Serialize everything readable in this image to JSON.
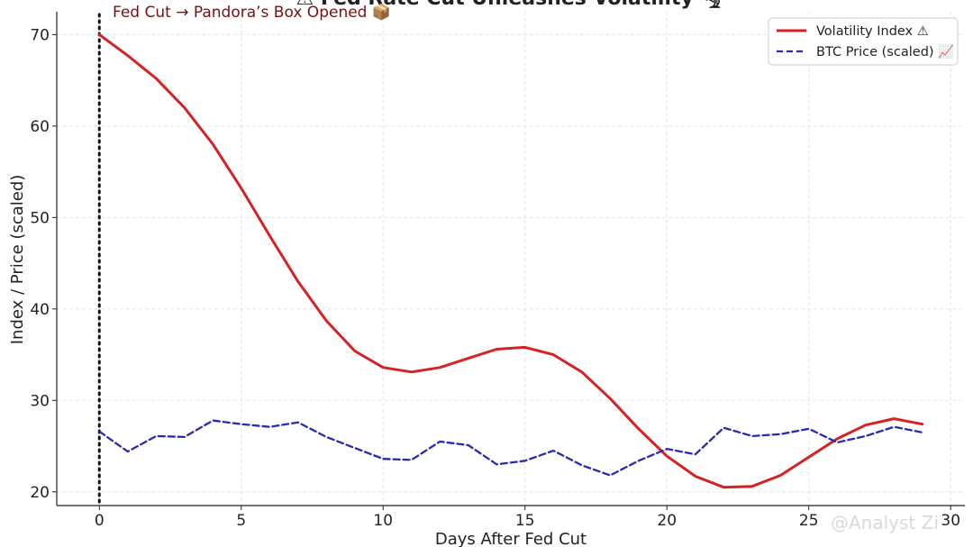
{
  "chart_data": {
    "type": "line",
    "title": "⚠ Fed Rate Cut Unleashes Volatility 🌪",
    "xlabel": "Days After Fed Cut",
    "ylabel": "Index / Price (scaled)",
    "xlim": [
      -1.5,
      30.5
    ],
    "ylim": [
      18.5,
      72.5
    ],
    "xticks": [
      0,
      5,
      10,
      15,
      20,
      25,
      30
    ],
    "yticks": [
      20,
      30,
      40,
      50,
      60,
      70
    ],
    "grid": true,
    "legend_position": "top-right",
    "x": [
      0,
      1,
      2,
      3,
      4,
      5,
      6,
      7,
      8,
      9,
      10,
      11,
      12,
      13,
      14,
      15,
      16,
      17,
      18,
      19,
      20,
      21,
      22,
      23,
      24,
      25,
      26,
      27,
      28,
      29
    ],
    "series": [
      {
        "name": "Volatility Index ⚠",
        "color": "#d62222",
        "style": "solid",
        "values": [
          70.0,
          67.7,
          65.2,
          62.0,
          58.0,
          53.2,
          48.0,
          43.0,
          38.7,
          35.4,
          33.6,
          33.1,
          33.6,
          34.6,
          35.6,
          35.8,
          35.0,
          33.1,
          30.2,
          26.9,
          23.9,
          21.7,
          20.5,
          20.6,
          21.8,
          23.8,
          25.8,
          27.3,
          28.0,
          27.4
        ]
      },
      {
        "name": "BTC Price (scaled) 📈",
        "color": "#2a2ab0",
        "style": "dashed",
        "values": [
          26.6,
          24.4,
          26.1,
          26.0,
          27.8,
          27.4,
          27.1,
          27.6,
          26.0,
          24.8,
          23.6,
          23.5,
          25.5,
          25.1,
          23.0,
          23.4,
          24.5,
          22.9,
          21.8,
          23.4,
          24.7,
          24.1,
          27.0,
          26.1,
          26.3,
          26.9,
          25.4,
          26.1,
          27.1,
          26.5
        ]
      }
    ],
    "annotations": [
      {
        "text": "Fed Cut → Pandora’s Box Opened 📦",
        "x": 0,
        "style": "dotted vertical line"
      }
    ]
  },
  "watermark": "@Analyst Zi"
}
